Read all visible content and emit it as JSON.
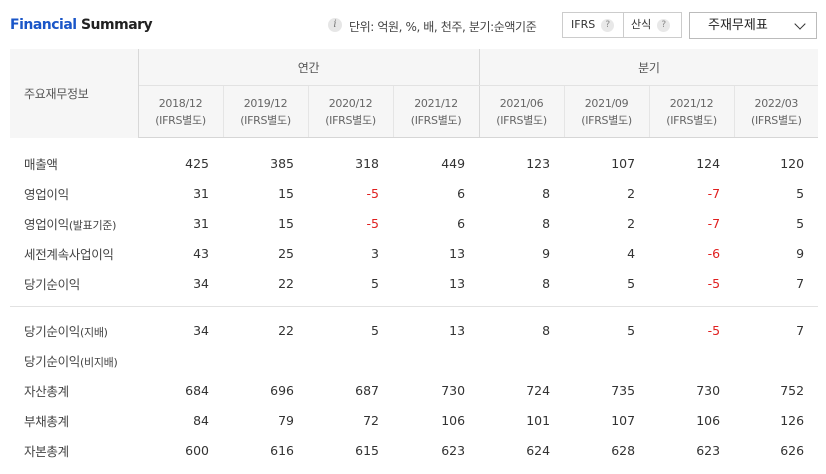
{
  "header": {
    "title_part1": "Financial",
    "title_part2": "Summary",
    "unit_text": "단위: 억원, %, 배, 천주, 분기:순액기준",
    "toggle_ifrs": "IFRS",
    "toggle_calc": "산식",
    "help_mark": "?",
    "info_mark": "i",
    "dropdown_label": "주재무제표"
  },
  "table": {
    "row_header": "주요재무정보",
    "group_annual": "연간",
    "group_quarter": "분기",
    "periods": [
      {
        "date": "2018/12",
        "basis": "(IFRS별도)"
      },
      {
        "date": "2019/12",
        "basis": "(IFRS별도)"
      },
      {
        "date": "2020/12",
        "basis": "(IFRS별도)"
      },
      {
        "date": "2021/12",
        "basis": "(IFRS별도)"
      },
      {
        "date": "2021/06",
        "basis": "(IFRS별도)"
      },
      {
        "date": "2021/09",
        "basis": "(IFRS별도)"
      },
      {
        "date": "2021/12",
        "basis": "(IFRS별도)"
      },
      {
        "date": "2022/03",
        "basis": "(IFRS별도)"
      }
    ],
    "rows": [
      {
        "label": "매출액",
        "sub": "",
        "values": [
          "425",
          "385",
          "318",
          "449",
          "123",
          "107",
          "124",
          "120"
        ]
      },
      {
        "label": "영업이익",
        "sub": "",
        "values": [
          "31",
          "15",
          "-5",
          "6",
          "8",
          "2",
          "-7",
          "5"
        ]
      },
      {
        "label": "영업이익",
        "sub": "(발표기준)",
        "values": [
          "31",
          "15",
          "-5",
          "6",
          "8",
          "2",
          "-7",
          "5"
        ]
      },
      {
        "label": "세전계속사업이익",
        "sub": "",
        "values": [
          "43",
          "25",
          "3",
          "13",
          "9",
          "4",
          "-6",
          "9"
        ]
      },
      {
        "label": "당기순이익",
        "sub": "",
        "values": [
          "34",
          "22",
          "5",
          "13",
          "8",
          "5",
          "-5",
          "7"
        ]
      },
      {
        "label": "당기순이익",
        "sub": "(지배)",
        "values": [
          "34",
          "22",
          "5",
          "13",
          "8",
          "5",
          "-5",
          "7"
        ]
      },
      {
        "label": "당기순이익",
        "sub": "(비지배)",
        "values": [
          "",
          "",
          "",
          "",
          "",
          "",
          "",
          ""
        ]
      },
      {
        "label": "자산총계",
        "sub": "",
        "values": [
          "684",
          "696",
          "687",
          "730",
          "724",
          "735",
          "730",
          "752"
        ]
      },
      {
        "label": "부채총계",
        "sub": "",
        "values": [
          "84",
          "79",
          "72",
          "106",
          "101",
          "107",
          "106",
          "126"
        ]
      },
      {
        "label": "자본총계",
        "sub": "",
        "values": [
          "600",
          "616",
          "615",
          "623",
          "624",
          "628",
          "623",
          "626"
        ]
      }
    ]
  }
}
